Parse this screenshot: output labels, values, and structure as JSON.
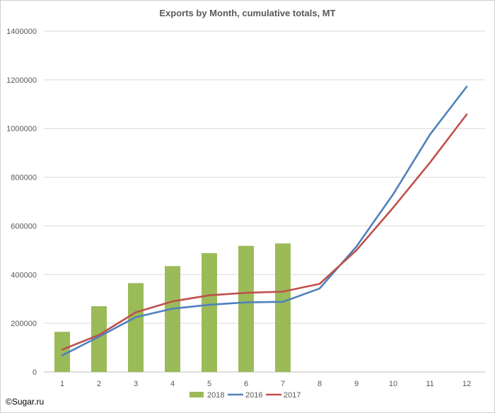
{
  "chart_data": {
    "type": "bar+line",
    "title": "Exports by Month, cumulative totals, MT",
    "xlabel": "",
    "ylabel": "",
    "categories": [
      "1",
      "2",
      "3",
      "4",
      "5",
      "6",
      "7",
      "8",
      "9",
      "10",
      "11",
      "12"
    ],
    "ylim": [
      0,
      1400000
    ],
    "yticks": [
      "0",
      "200000",
      "400000",
      "600000",
      "800000",
      "1000000",
      "1200000",
      "1400000"
    ],
    "grid": true,
    "legend_position": "bottom",
    "series": [
      {
        "name": "2018",
        "kind": "bar",
        "color": "#9BBB59",
        "values": [
          165000,
          270000,
          365000,
          435000,
          488000,
          518000,
          528000,
          null,
          null,
          null,
          null,
          null
        ]
      },
      {
        "name": "2016",
        "kind": "line",
        "color": "#4F81BD",
        "values": [
          68000,
          145000,
          225000,
          260000,
          276000,
          286000,
          288000,
          343000,
          515000,
          730000,
          975000,
          1172000
        ]
      },
      {
        "name": "2017",
        "kind": "line",
        "color": "#C0504D",
        "values": [
          92000,
          152000,
          245000,
          290000,
          315000,
          325000,
          330000,
          362000,
          500000,
          675000,
          860000,
          1058000
        ]
      }
    ]
  },
  "credit": "©Sugar.ru"
}
